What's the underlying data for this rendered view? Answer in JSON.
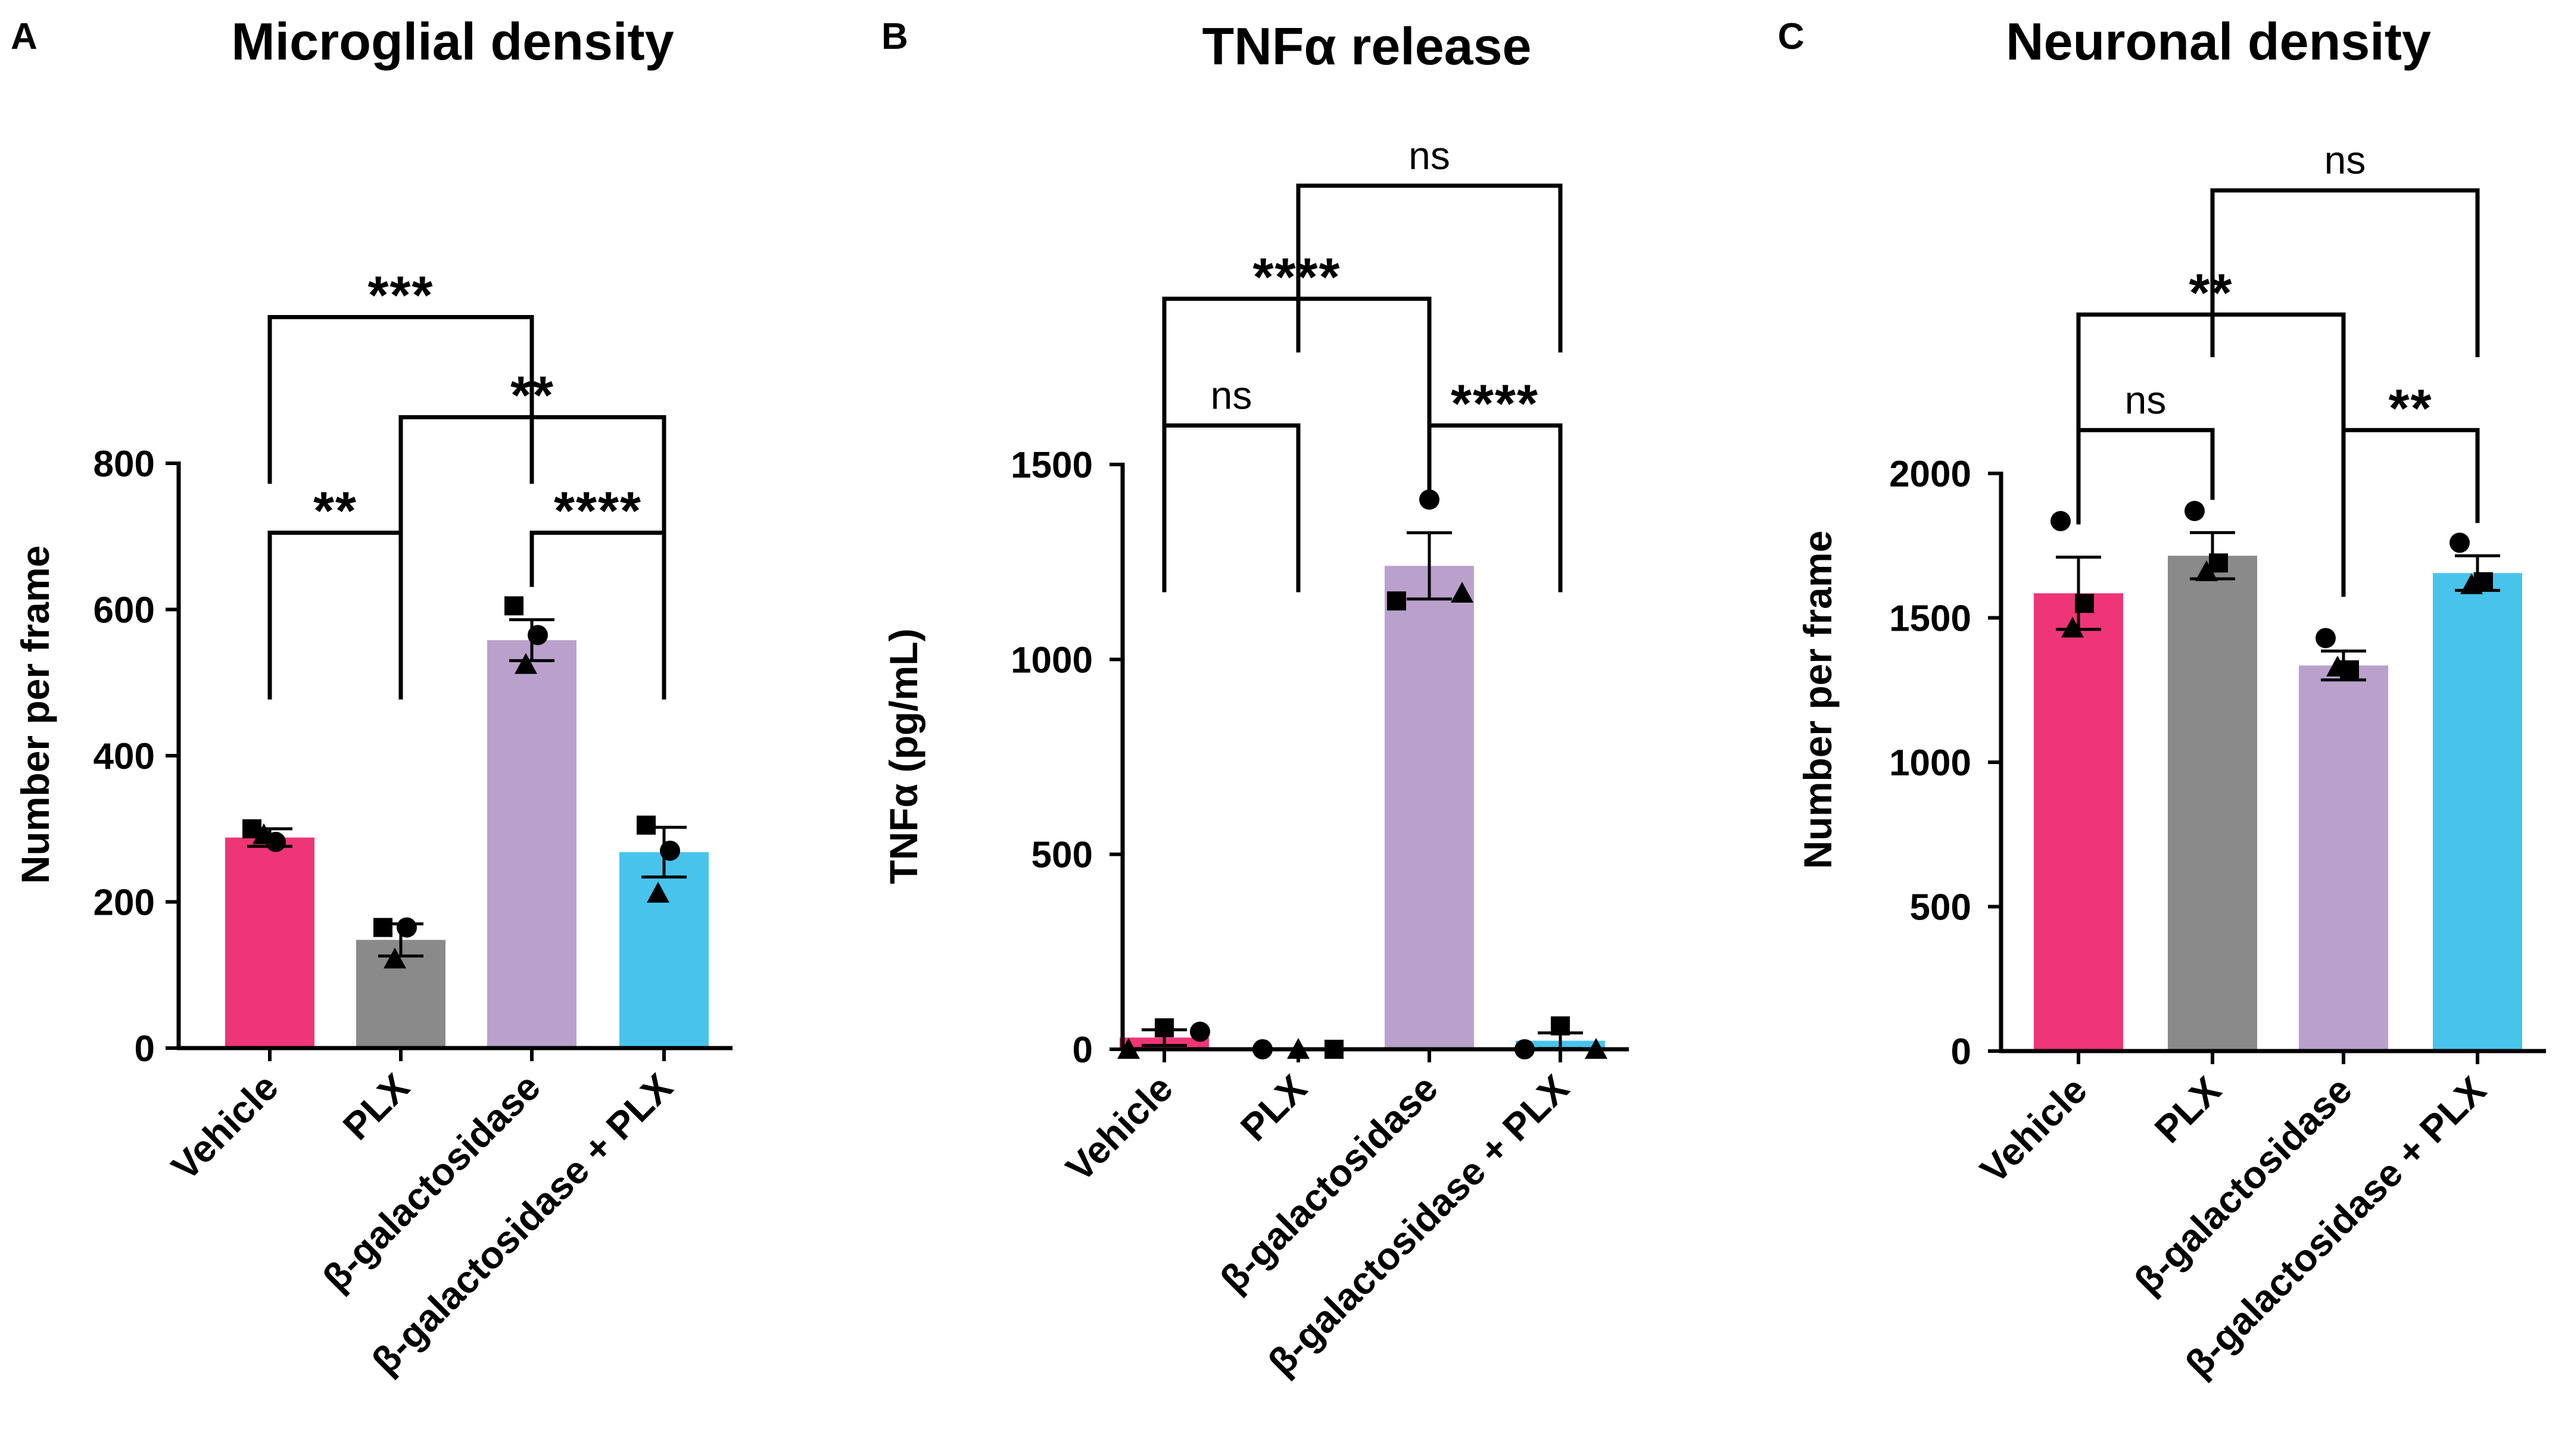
{
  "chart_data": [
    {
      "panel": "A",
      "type": "bar",
      "title": "Microglial density",
      "xlabel": "",
      "ylabel": "Number per frame",
      "ylim": [
        0,
        800
      ],
      "yticks": [
        0,
        200,
        400,
        600,
        800
      ],
      "categories": [
        "Vehicle",
        "PLX",
        "β-galactosidase",
        "β-galactosidase + PLX"
      ],
      "values": [
        288,
        148,
        558,
        268
      ],
      "sem": [
        12,
        22,
        28,
        34
      ],
      "colors": [
        "#EE3577",
        "#8A8A8A",
        "#B9A1CC",
        "#48C4EC"
      ],
      "points": [
        [
          {
            "shape": "square",
            "y": 300
          },
          {
            "shape": "circle",
            "y": 282
          },
          {
            "shape": "triangle",
            "y": 292
          }
        ],
        [
          {
            "shape": "square",
            "y": 165
          },
          {
            "shape": "circle",
            "y": 165
          },
          {
            "shape": "triangle",
            "y": 122
          }
        ],
        [
          {
            "shape": "square",
            "y": 605
          },
          {
            "shape": "circle",
            "y": 565
          },
          {
            "shape": "triangle",
            "y": 525
          }
        ],
        [
          {
            "shape": "square",
            "y": 305
          },
          {
            "shape": "circle",
            "y": 270
          },
          {
            "shape": "triangle",
            "y": 212
          }
        ]
      ],
      "comparisons": [
        {
          "from": 0,
          "to": 2,
          "label": "***",
          "y": 1000
        },
        {
          "from": 1,
          "to": 3,
          "label": "**",
          "y": 863
        },
        {
          "from": 0,
          "to": 1,
          "label": "**",
          "y": 705
        },
        {
          "from": 2,
          "to": 3,
          "label": "****",
          "y": 705
        }
      ]
    },
    {
      "panel": "B",
      "type": "bar",
      "title": "TNFα release",
      "xlabel": "",
      "ylabel": "TNFα (pg/mL)",
      "ylim": [
        0,
        1500
      ],
      "yticks": [
        0,
        500,
        1000,
        1500
      ],
      "categories": [
        "Vehicle",
        "PLX",
        "β-galactosidase",
        "β-galactosidase + PLX"
      ],
      "values": [
        30,
        0,
        1240,
        22
      ],
      "sem": [
        20,
        0,
        85,
        20
      ],
      "colors": [
        "#EE3577",
        "#8A8A8A",
        "#B9A1CC",
        "#48C4EC"
      ],
      "points": [
        [
          {
            "shape": "triangle",
            "y": 0,
            "dx": -60
          },
          {
            "shape": "square",
            "y": 55,
            "dx": 0
          },
          {
            "shape": "circle",
            "y": 45,
            "dx": 60
          }
        ],
        [
          {
            "shape": "circle",
            "y": 0,
            "dx": -60
          },
          {
            "shape": "triangle",
            "y": 0,
            "dx": 0
          },
          {
            "shape": "square",
            "y": 0,
            "dx": 60
          }
        ],
        [
          {
            "shape": "circle",
            "y": 1410,
            "dx": 0
          },
          {
            "shape": "square",
            "y": 1150,
            "dx": -55
          },
          {
            "shape": "triangle",
            "y": 1170,
            "dx": 55
          }
        ],
        [
          {
            "shape": "circle",
            "y": 0,
            "dx": -60
          },
          {
            "shape": "square",
            "y": 60,
            "dx": 0
          },
          {
            "shape": "triangle",
            "y": 0,
            "dx": 60
          }
        ]
      ],
      "comparisons": [
        {
          "from": 1,
          "to": 3,
          "label": "ns",
          "y": 2215
        },
        {
          "from": 0,
          "to": 2,
          "label": "****",
          "y": 1925
        },
        {
          "from": 0,
          "to": 1,
          "label": "ns",
          "y": 1600
        },
        {
          "from": 2,
          "to": 3,
          "label": "****",
          "y": 1600
        }
      ]
    },
    {
      "panel": "C",
      "type": "bar",
      "title": "Neuronal density",
      "xlabel": "",
      "ylabel": "Number per frame",
      "ylim": [
        0,
        2000
      ],
      "yticks": [
        0,
        500,
        1000,
        1500,
        2000
      ],
      "categories": [
        "Vehicle",
        "PLX",
        "β-galactosidase",
        "β-galactosidase + PLX"
      ],
      "values": [
        1585,
        1715,
        1335,
        1655
      ],
      "sem": [
        125,
        80,
        50,
        60
      ],
      "colors": [
        "#EE3577",
        "#8A8A8A",
        "#B9A1CC",
        "#48C4EC"
      ],
      "points": [
        [
          {
            "shape": "circle",
            "y": 1835
          },
          {
            "shape": "square",
            "y": 1550
          },
          {
            "shape": "triangle",
            "y": 1465
          }
        ],
        [
          {
            "shape": "circle",
            "y": 1870
          },
          {
            "shape": "square",
            "y": 1690
          },
          {
            "shape": "triangle",
            "y": 1660
          }
        ],
        [
          {
            "shape": "circle",
            "y": 1430
          },
          {
            "shape": "square",
            "y": 1320
          },
          {
            "shape": "triangle",
            "y": 1330
          }
        ],
        [
          {
            "shape": "circle",
            "y": 1760
          },
          {
            "shape": "square",
            "y": 1625
          },
          {
            "shape": "triangle",
            "y": 1615
          }
        ]
      ],
      "comparisons": [
        {
          "from": 1,
          "to": 3,
          "label": "ns",
          "y": 2980
        },
        {
          "from": 0,
          "to": 2,
          "label": "**",
          "y": 2550
        },
        {
          "from": 0,
          "to": 1,
          "label": "ns",
          "y": 2150
        },
        {
          "from": 2,
          "to": 3,
          "label": "**",
          "y": 2150
        }
      ]
    }
  ]
}
